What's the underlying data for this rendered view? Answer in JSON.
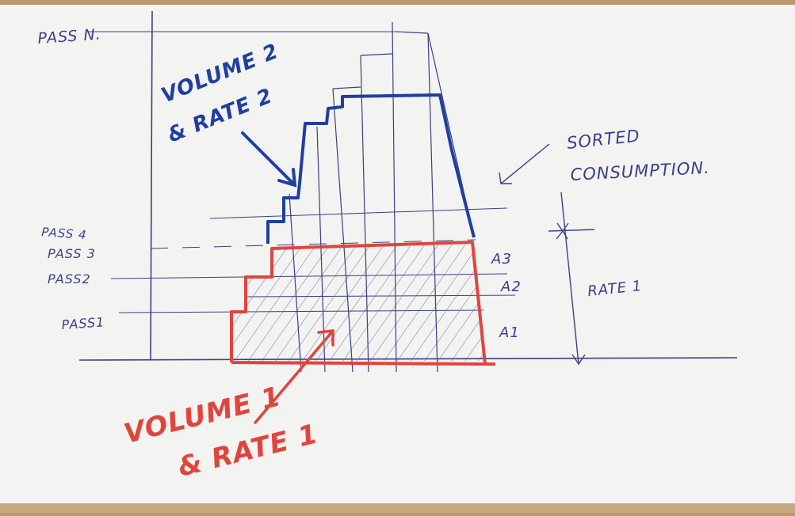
{
  "labels": {
    "pass_n": "PASS N.",
    "pass_4": "PASS 4",
    "pass_3": "PASS 3",
    "pass_2": "PASS2",
    "pass_1": "PASS1",
    "a1": "A1",
    "a2": "A2",
    "a3": "A3",
    "rate_1": "RATE 1",
    "sorted_line1": "SORTED",
    "sorted_line2": "CONSUMPTION.",
    "volume2_line1": "VOLUME 2",
    "volume2_line2": "& RATE 2",
    "volume1_line1": "VOLUME 1",
    "volume1_line2": "& RATE 1"
  },
  "colors": {
    "paper": "#f3f3f1",
    "pen": "#3c3f86",
    "red": "#e0453d",
    "blue": "#1f3fa0",
    "desk": "#b99a6e"
  }
}
